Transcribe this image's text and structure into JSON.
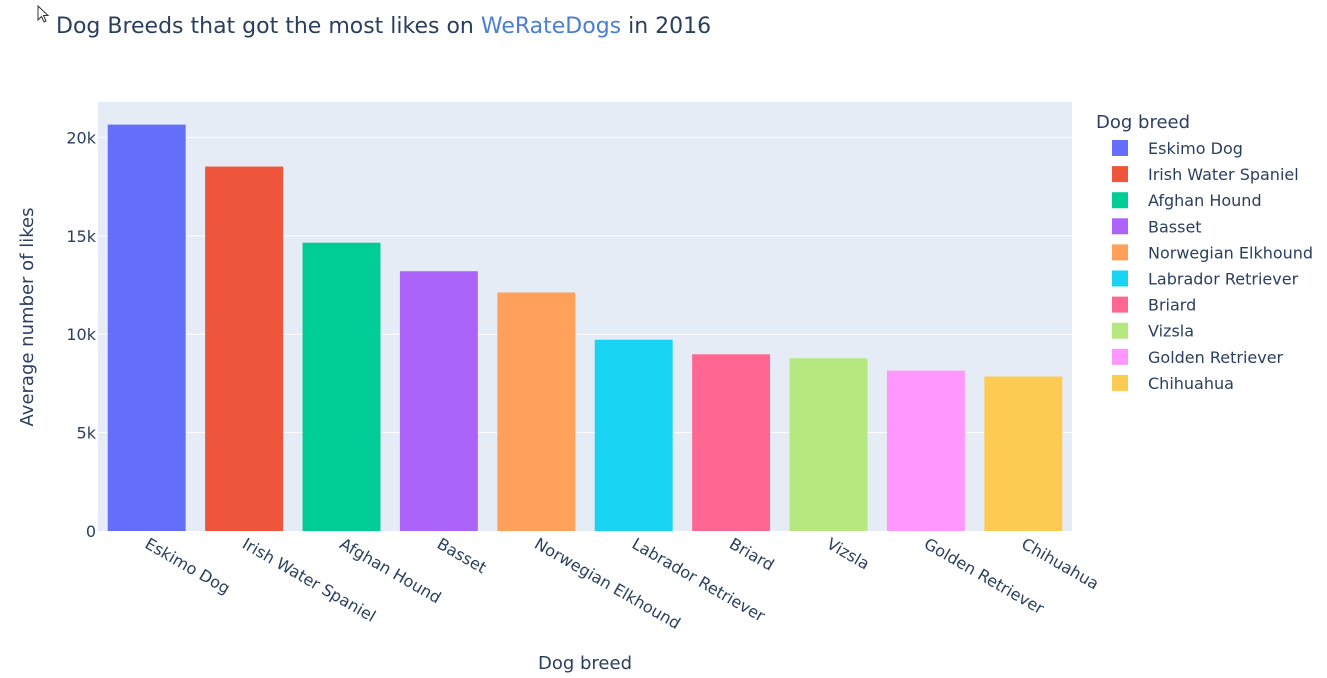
{
  "title": {
    "prefix": "Dog Breeds that got the most likes on ",
    "link": "WeRateDogs",
    "suffix": " in 2016"
  },
  "chart_data": {
    "type": "bar",
    "xlabel": "Dog breed",
    "ylabel": "Average number of likes",
    "ylim": [
      0,
      21800
    ],
    "yticks": [
      0,
      5000,
      10000,
      15000,
      20000
    ],
    "ytick_labels": [
      "0",
      "5k",
      "10k",
      "15k",
      "20k"
    ],
    "grid": true,
    "legend": {
      "title": "Dog breed",
      "placement": "right"
    },
    "categories": [
      "Eskimo Dog",
      "Irish Water Spaniel",
      "Afghan Hound",
      "Basset",
      "Norwegian Elkhound",
      "Labrador Retriever",
      "Briard",
      "Vizsla",
      "Golden Retriever",
      "Chihuahua"
    ],
    "values": [
      20650,
      18520,
      14650,
      13200,
      12120,
      9720,
      8980,
      8780,
      8150,
      7850
    ],
    "colors": [
      "#636efa",
      "#ef553b",
      "#00cc96",
      "#ab63fa",
      "#ffa15a",
      "#19d3f3",
      "#ff6692",
      "#b6e880",
      "#ff97ff",
      "#fecb52"
    ]
  }
}
